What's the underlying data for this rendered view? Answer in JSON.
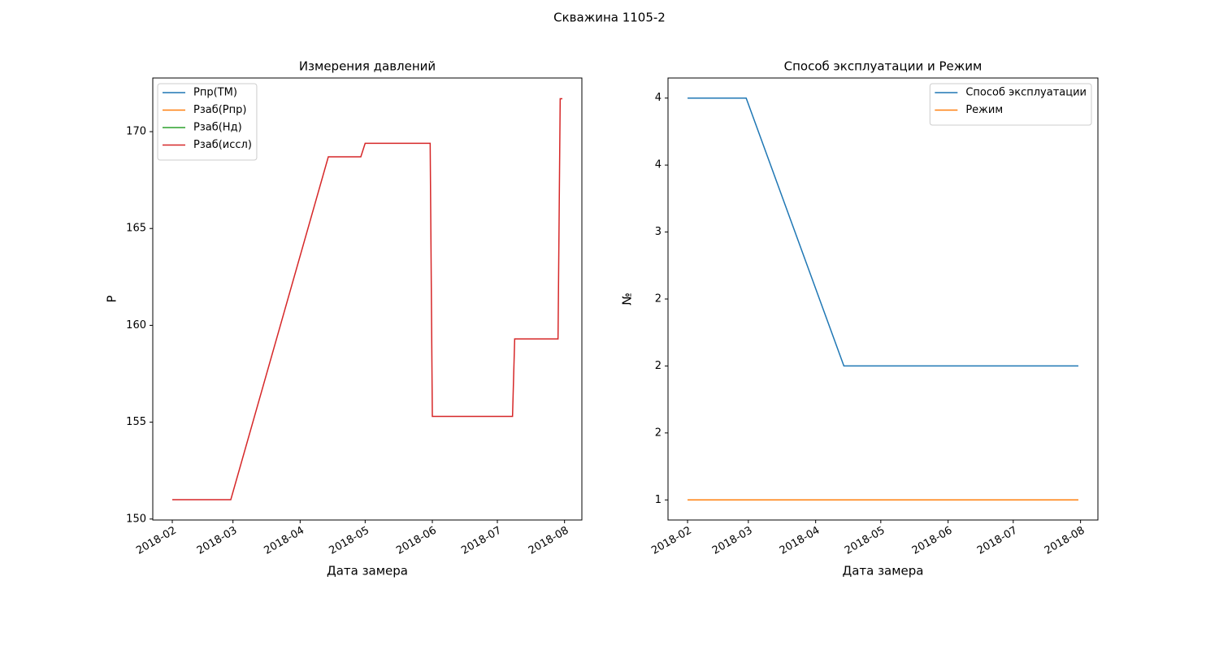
{
  "title": "Скважина 1105-2",
  "chart_data": [
    {
      "type": "line",
      "title": "Измерения давлений",
      "xlabel": "Дата замера",
      "ylabel": "P",
      "x": [
        "2018-02-01",
        "2018-02-28",
        "2018-04-14",
        "2018-04-29",
        "2018-05-01",
        "2018-05-31",
        "2018-06-01",
        "2018-07-08",
        "2018-07-09",
        "2018-07-29",
        "2018-07-30",
        "2018-07-31"
      ],
      "series": [
        {
          "name": "Pпр(ТМ)",
          "color": "#1f77b4",
          "values": [
            null,
            null,
            null,
            null,
            null,
            null,
            null,
            null,
            null,
            null,
            null,
            null
          ]
        },
        {
          "name": "Pзаб(Pпр)",
          "color": "#ff7f0e",
          "values": [
            null,
            null,
            null,
            null,
            null,
            null,
            null,
            null,
            null,
            null,
            null,
            null
          ]
        },
        {
          "name": "Pзаб(Нд)",
          "color": "#2ca02c",
          "values": [
            null,
            null,
            null,
            null,
            null,
            null,
            null,
            null,
            null,
            null,
            null,
            null
          ]
        },
        {
          "name": "Pзаб(иссл)",
          "color": "#d62728",
          "values": [
            151.0,
            151.0,
            168.7,
            168.7,
            169.4,
            169.4,
            155.3,
            155.3,
            159.3,
            159.3,
            171.7,
            171.7
          ]
        }
      ],
      "xlim": [
        "2018-01-23",
        "2018-08-09"
      ],
      "xticks": [
        {
          "value": "2018-02-01",
          "label": "2018-02"
        },
        {
          "value": "2018-03-01",
          "label": "2018-03"
        },
        {
          "value": "2018-04-01",
          "label": "2018-04"
        },
        {
          "value": "2018-05-01",
          "label": "2018-05"
        },
        {
          "value": "2018-06-01",
          "label": "2018-06"
        },
        {
          "value": "2018-07-01",
          "label": "2018-07"
        },
        {
          "value": "2018-08-01",
          "label": "2018-08"
        }
      ],
      "ylim": [
        149.95,
        172.77
      ],
      "yticks": [
        150,
        155,
        160,
        165,
        170
      ],
      "legend": "upper left",
      "grid": false
    },
    {
      "type": "line",
      "title": "Способ эксплуатации и Режим",
      "xlabel": "Дата замера",
      "ylabel": "№",
      "x": [
        "2018-02-01",
        "2018-02-28",
        "2018-04-14",
        "2018-04-29",
        "2018-05-01",
        "2018-05-31",
        "2018-06-01",
        "2018-07-08",
        "2018-07-09",
        "2018-07-29",
        "2018-07-30",
        "2018-07-31"
      ],
      "series": [
        {
          "name": "Способ эксплуатации",
          "color": "#1f77b4",
          "values": [
            4,
            4,
            2,
            2,
            2,
            2,
            2,
            2,
            2,
            2,
            2,
            2
          ]
        },
        {
          "name": "Режим",
          "color": "#ff7f0e",
          "values": [
            1,
            1,
            1,
            1,
            1,
            1,
            1,
            1,
            1,
            1,
            1,
            1
          ]
        }
      ],
      "xlim": [
        "2018-01-23",
        "2018-08-09"
      ],
      "xticks": [
        {
          "value": "2018-02-01",
          "label": "2018-02"
        },
        {
          "value": "2018-03-01",
          "label": "2018-03"
        },
        {
          "value": "2018-04-01",
          "label": "2018-04"
        },
        {
          "value": "2018-05-01",
          "label": "2018-05"
        },
        {
          "value": "2018-06-01",
          "label": "2018-06"
        },
        {
          "value": "2018-07-01",
          "label": "2018-07"
        },
        {
          "value": "2018-08-01",
          "label": "2018-08"
        }
      ],
      "ylim": [
        0.85,
        4.15
      ],
      "yticks": [
        {
          "value": 1.0,
          "label": "1"
        },
        {
          "value": 1.5,
          "label": "2"
        },
        {
          "value": 2.0,
          "label": "2"
        },
        {
          "value": 2.5,
          "label": "2"
        },
        {
          "value": 3.0,
          "label": "3"
        },
        {
          "value": 3.5,
          "label": "4"
        },
        {
          "value": 4.0,
          "label": "4"
        }
      ],
      "legend": "upper right",
      "grid": false
    }
  ]
}
